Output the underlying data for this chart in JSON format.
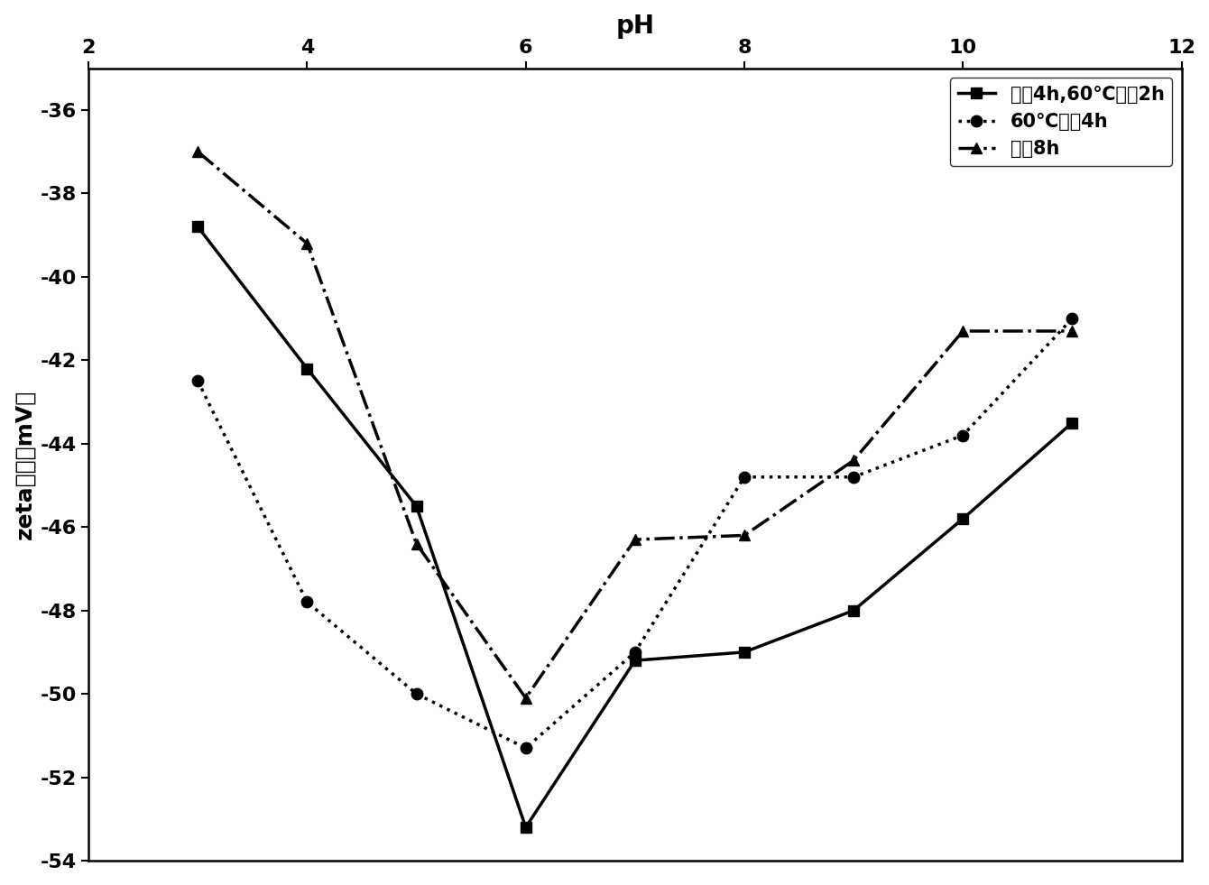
{
  "title": "pH",
  "ylabel": "zeta电位（mV）",
  "xlim": [
    2,
    12
  ],
  "ylim": [
    -54,
    -35
  ],
  "xticks": [
    2,
    4,
    6,
    8,
    10,
    12
  ],
  "yticks": [
    -54,
    -52,
    -50,
    -48,
    -46,
    -44,
    -42,
    -40,
    -38,
    -36
  ],
  "series": [
    {
      "label": "超声4h,60℃回流2h",
      "x": [
        3,
        4,
        5,
        6,
        7,
        8,
        9,
        10,
        11
      ],
      "y": [
        -38.8,
        -42.2,
        -45.5,
        -53.2,
        -49.2,
        -49.0,
        -48.0,
        -45.8,
        -43.5
      ],
      "linestyle": "-",
      "marker": "s",
      "color": "black",
      "linewidth": 2.5,
      "markersize": 9
    },
    {
      "label": "60℃回流4h",
      "x": [
        3,
        4,
        5,
        6,
        7,
        8,
        9,
        10,
        11
      ],
      "y": [
        -42.5,
        -47.8,
        -50.0,
        -51.3,
        -49.0,
        -44.8,
        -44.8,
        -43.8,
        -41.0
      ],
      "linestyle": ":",
      "marker": "o",
      "color": "black",
      "linewidth": 2.5,
      "markersize": 9
    },
    {
      "label": "超声8h",
      "x": [
        3,
        4,
        5,
        6,
        7,
        8,
        9,
        10,
        11
      ],
      "y": [
        -37.0,
        -39.2,
        -46.4,
        -50.1,
        -46.3,
        -46.2,
        -44.4,
        -41.3,
        -41.3
      ],
      "linestyle": "-.",
      "marker": "^",
      "color": "black",
      "linewidth": 2.5,
      "markersize": 9
    }
  ],
  "legend_loc": "upper right",
  "background_color": "white",
  "title_fontsize": 20,
  "label_fontsize": 18,
  "tick_fontsize": 16,
  "legend_fontsize": 15
}
